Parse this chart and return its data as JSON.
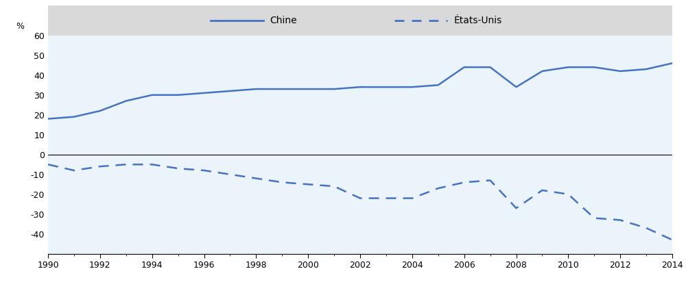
{
  "years": [
    1990,
    1991,
    1992,
    1993,
    1994,
    1995,
    1996,
    1997,
    1998,
    1999,
    2000,
    2001,
    2002,
    2003,
    2004,
    2005,
    2006,
    2007,
    2008,
    2009,
    2010,
    2011,
    2012,
    2013,
    2014
  ],
  "chine": [
    18,
    19,
    22,
    27,
    30,
    30,
    31,
    32,
    33,
    33,
    33,
    33,
    34,
    34,
    34,
    35,
    44,
    44,
    34,
    42,
    44,
    44,
    42,
    43,
    46
  ],
  "etats_unis": [
    -5,
    -8,
    -6,
    -5,
    -5,
    -7,
    -8,
    -10,
    -12,
    -14,
    -15,
    -16,
    -22,
    -22,
    -22,
    -17,
    -14,
    -13,
    -27,
    -18,
    -20,
    -32,
    -33,
    -37,
    -43
  ],
  "line_color": "#4472C4",
  "bg_color": "#EBF4FA",
  "legend_labels": [
    "Chine",
    "États-Unis"
  ],
  "ylabel": "%",
  "header_bg": "#D9D9D9",
  "xtick_labels": [
    "1990",
    "1992",
    "1994",
    "1996",
    "1998",
    "2000",
    "2002",
    "2004",
    "2006",
    "2008",
    "2010",
    "2012",
    "2014"
  ]
}
